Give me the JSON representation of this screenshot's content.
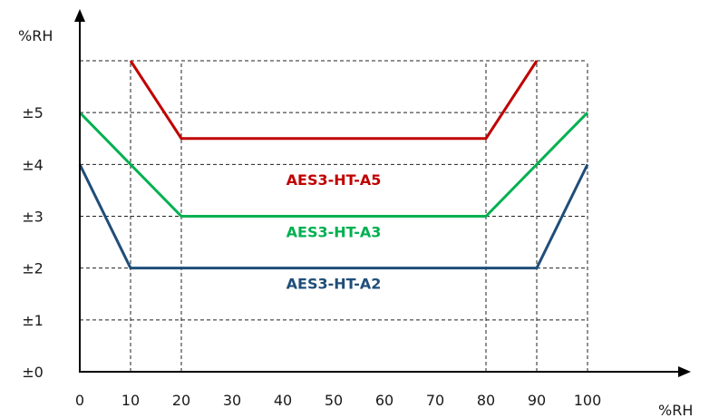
{
  "chart_data": {
    "type": "line",
    "xlabel": "%RH",
    "ylabel": "%RH",
    "x_ticks": [
      {
        "value": 0,
        "label": "0"
      },
      {
        "value": 10,
        "label": "10"
      },
      {
        "value": 20,
        "label": "20"
      },
      {
        "value": 30,
        "label": "30"
      },
      {
        "value": 40,
        "label": "40"
      },
      {
        "value": 50,
        "label": "50"
      },
      {
        "value": 60,
        "label": "60"
      },
      {
        "value": 70,
        "label": "70"
      },
      {
        "value": 80,
        "label": "80"
      },
      {
        "value": 90,
        "label": "90"
      },
      {
        "value": 100,
        "label": "100"
      }
    ],
    "y_ticks": [
      {
        "value": 0,
        "label": "±0"
      },
      {
        "value": 1,
        "label": "±1"
      },
      {
        "value": 2,
        "label": "±2"
      },
      {
        "value": 3,
        "label": "±3"
      },
      {
        "value": 4,
        "label": "±4"
      },
      {
        "value": 5,
        "label": "±5"
      }
    ],
    "x_grid": [
      10,
      20,
      80,
      90,
      100
    ],
    "y_grid": [
      1,
      2,
      3,
      4,
      5,
      6
    ],
    "xlim": [
      0,
      100
    ],
    "ylim": [
      0,
      6
    ],
    "grid": true,
    "series": [
      {
        "name": "AES3-HT-A5",
        "color": "#c00000",
        "x": [
          10,
          20,
          80,
          90
        ],
        "y": [
          6,
          4.5,
          4.5,
          6
        ],
        "label_x": 50,
        "label_y": 3.6
      },
      {
        "name": "AES3-HT-A3",
        "color": "#00b050",
        "x": [
          0,
          20,
          80,
          100
        ],
        "y": [
          5,
          3,
          3,
          5
        ],
        "label_x": 50,
        "label_y": 2.6
      },
      {
        "name": "AES3-HT-A2",
        "color": "#1f4e79",
        "x": [
          0,
          10,
          90,
          100
        ],
        "y": [
          4,
          2,
          2,
          4
        ],
        "label_x": 50,
        "label_y": 1.6
      }
    ]
  }
}
